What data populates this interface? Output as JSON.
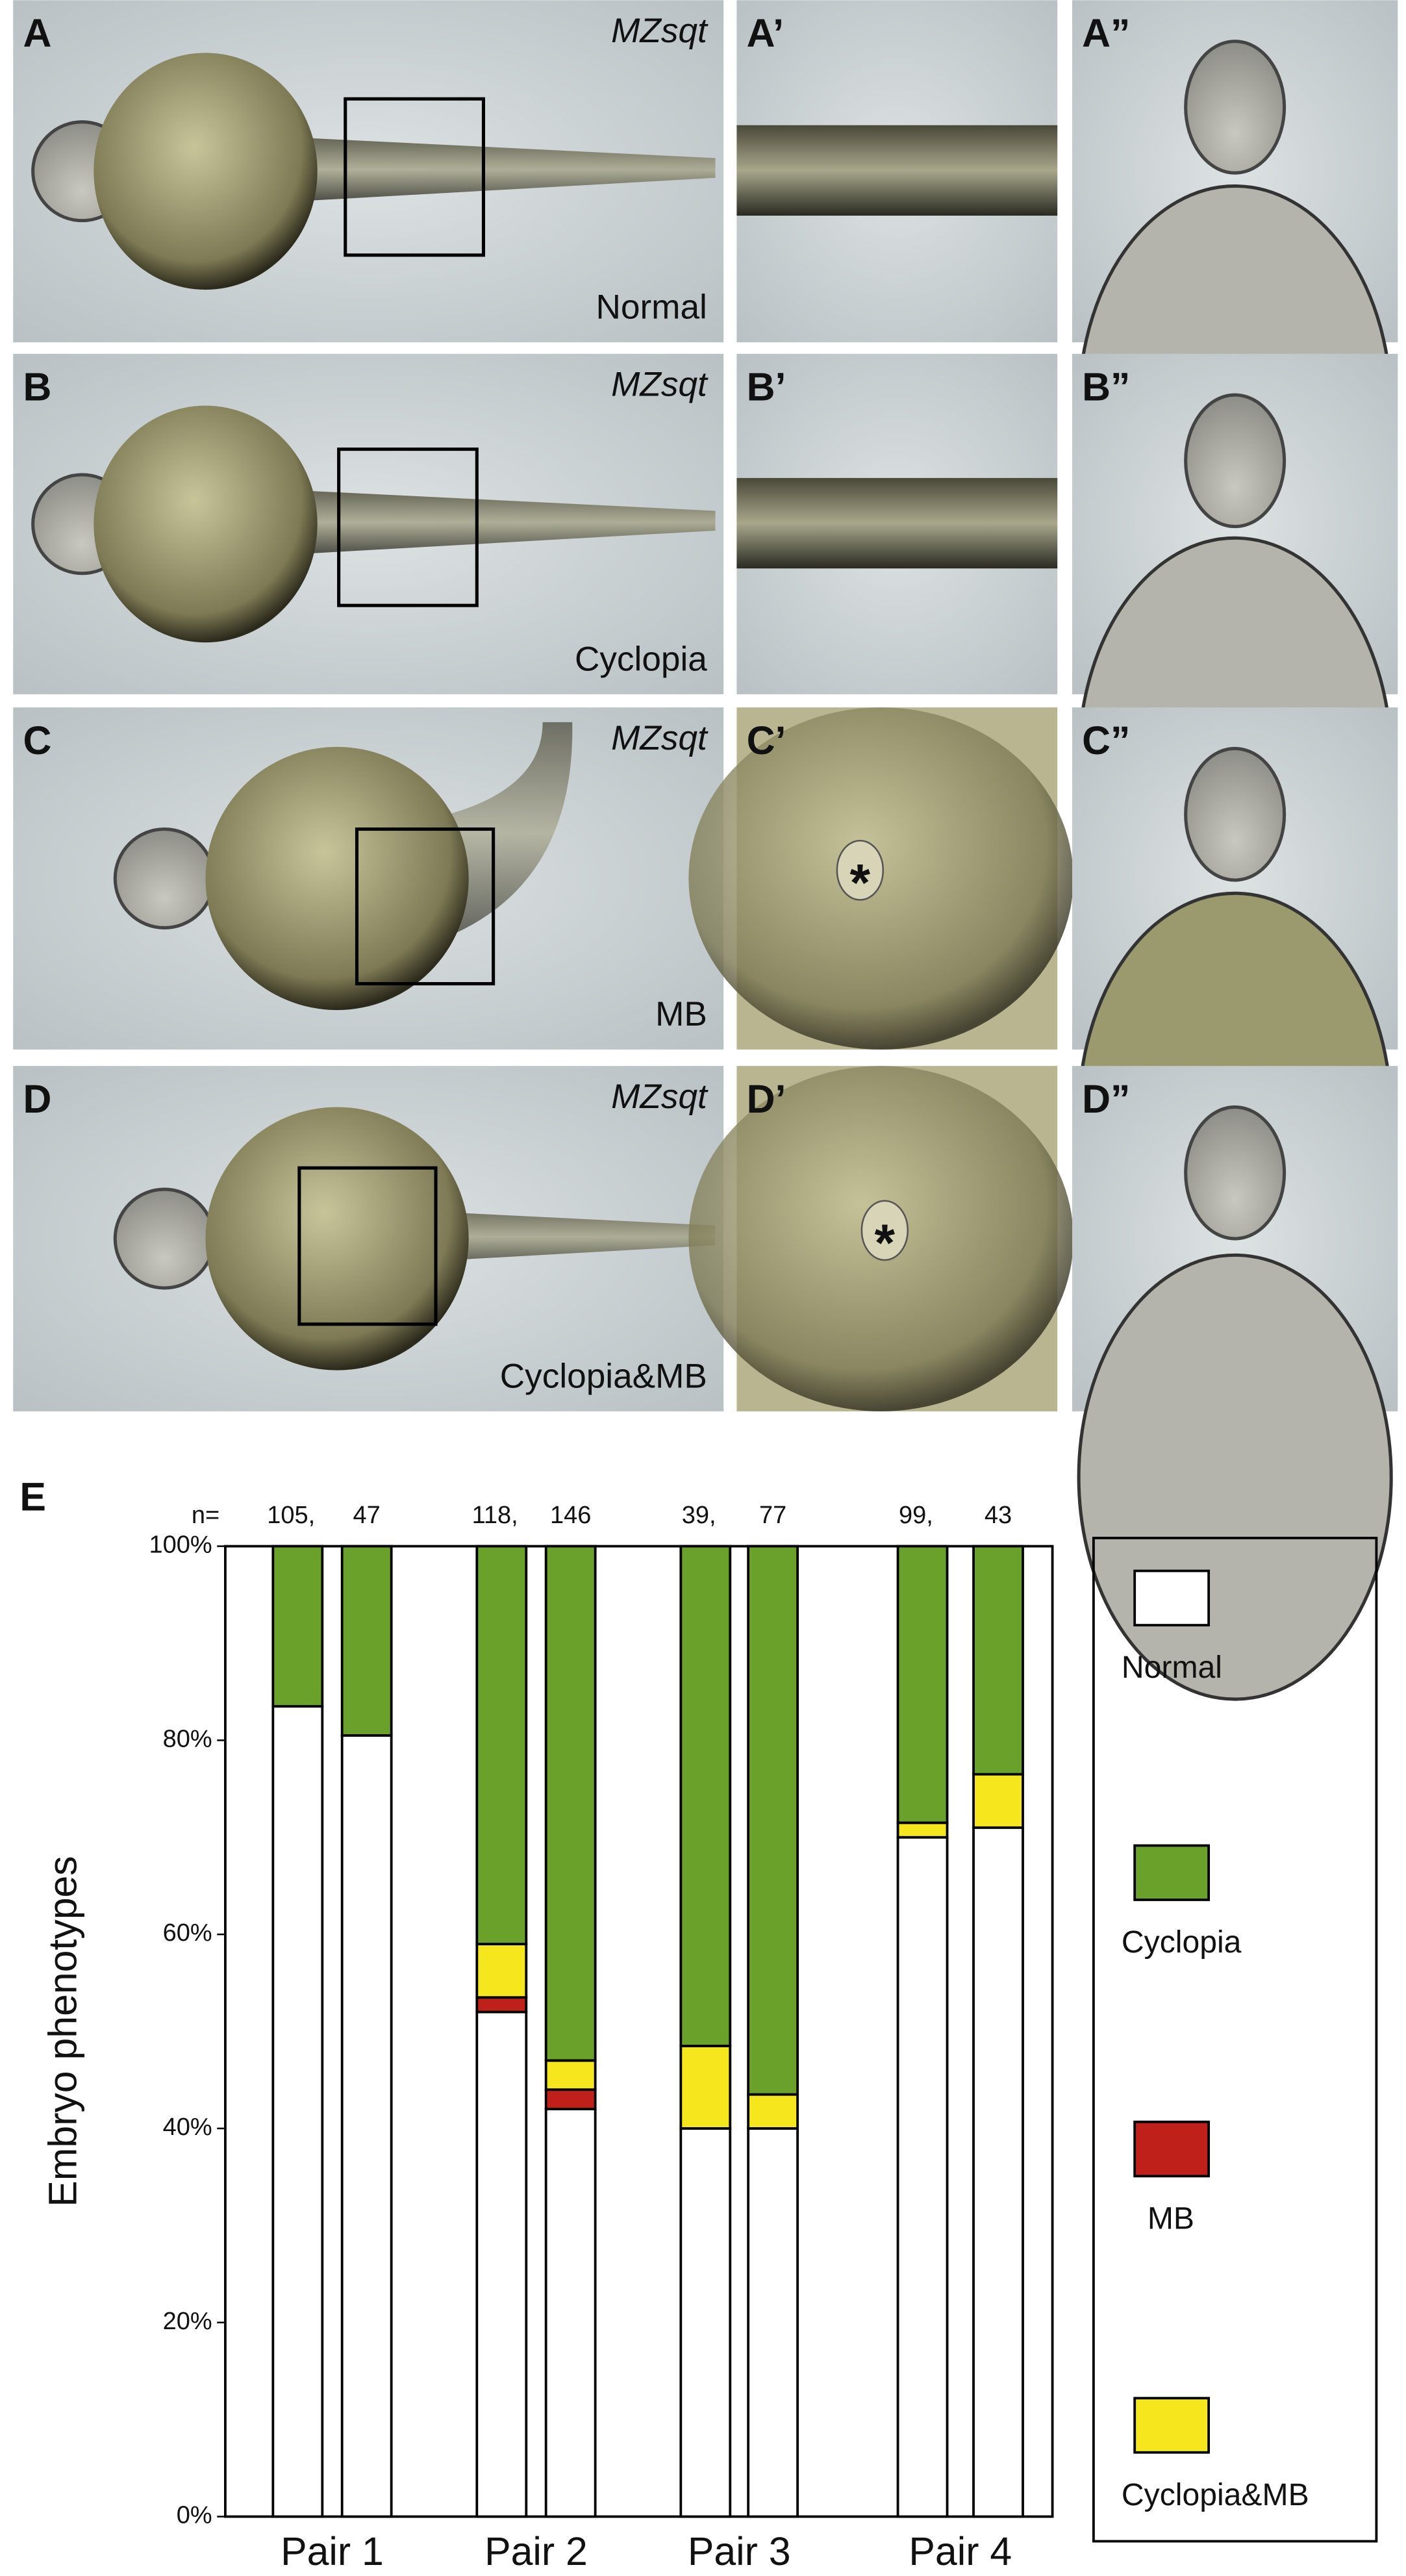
{
  "panels": [
    {
      "labels": [
        "A",
        "A’",
        "A”"
      ],
      "strain": "MZsqt",
      "phenotype": "Normal"
    },
    {
      "labels": [
        "B",
        "B’",
        "B”"
      ],
      "strain": "MZsqt",
      "phenotype": "Cyclopia"
    },
    {
      "labels": [
        "C",
        "C’",
        "C”"
      ],
      "strain": "MZsqt",
      "phenotype": "MB"
    },
    {
      "labels": [
        "D",
        "D’",
        "D”"
      ],
      "strain": "MZsqt",
      "phenotype": "Cyclopia&MB"
    }
  ],
  "chart_data": {
    "type": "stacked_bar",
    "panel_label": "E",
    "ylabel": "Embryo phenotypes",
    "n_prefix": "n=",
    "groups": [
      {
        "label": "Pair 1",
        "n": [
          "105,",
          "47"
        ]
      },
      {
        "label": "Pair 2",
        "n": [
          "118,",
          "146"
        ]
      },
      {
        "label": "Pair 3",
        "n": [
          "39,",
          "77"
        ]
      },
      {
        "label": "Pair 4",
        "n": [
          "99,",
          "43"
        ]
      }
    ],
    "series": [
      {
        "name": "Normal",
        "color": "#ffffff",
        "values": [
          83.5,
          80.5,
          52,
          42,
          40,
          40,
          70,
          71
        ]
      },
      {
        "name": "Cyclopia",
        "color": "#6aa12a",
        "values": [
          16.5,
          19.5,
          41,
          53,
          51.5,
          56.5,
          28.5,
          23.5
        ]
      },
      {
        "name": "MB",
        "color": "#c0201a",
        "values": [
          0,
          0,
          1.5,
          2,
          0,
          0,
          0,
          0
        ]
      },
      {
        "name": "Cyclopia&MB",
        "color": "#f5e61e",
        "values": [
          0,
          0,
          5.5,
          3,
          8.5,
          3.5,
          1.5,
          5.5
        ]
      }
    ],
    "ylim": [
      0,
      100
    ],
    "yticks": [
      {
        "value": 0,
        "label": "0%"
      },
      {
        "value": 20,
        "label": "20%"
      },
      {
        "value": 40,
        "label": "40%"
      },
      {
        "value": 60,
        "label": "60%"
      },
      {
        "value": 80,
        "label": "80%"
      },
      {
        "value": 100,
        "label": "100%"
      }
    ]
  }
}
